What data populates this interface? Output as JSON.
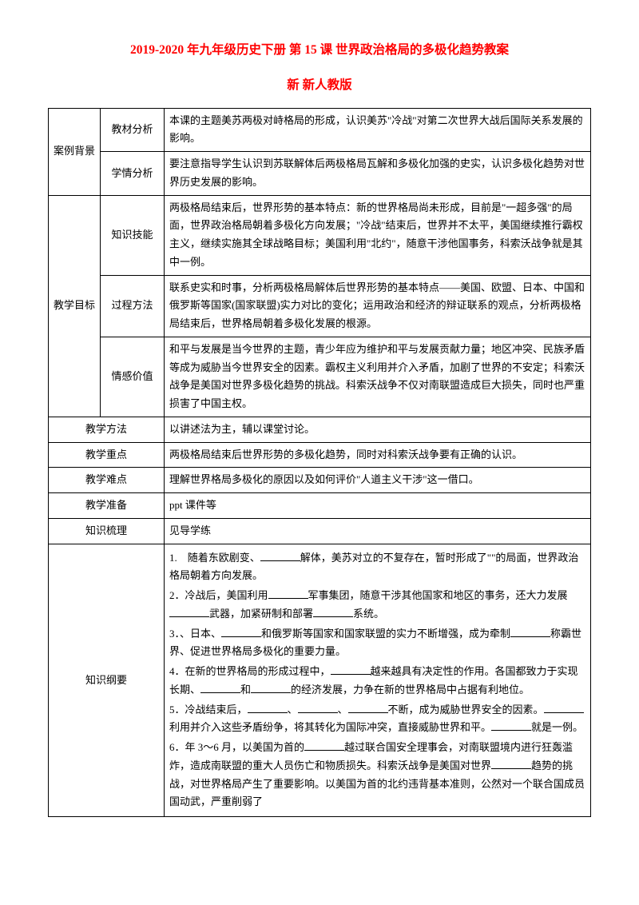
{
  "title1": "2019-2020 年九年级历史下册 第 15 课 世界政治格局的多极化趋势教案",
  "title2": "新 新人教版",
  "rows": {
    "case_bg": "案例背景",
    "textbook_analysis_label": "教材分析",
    "textbook_analysis": "本课的主题美苏两极对峙格局的形成，认识美苏\"冷战\"对第二次世界大战后国际关系发展的影响。",
    "student_analysis_label": "学情分析",
    "student_analysis": "要注意指导学生认识到苏联解体后两极格局瓦解和多极化加强的史实，认识多极化趋势对世界历史发展的影响。",
    "teach_goal": "教学目标",
    "knowledge_skill_label": "知识技能",
    "knowledge_skill": "两极格局结束后，世界形势的基本特点：新的世界格局尚未形成，目前是\"一超多强\"的局面，世界政治格局朝着多极化方向发展；\"冷战\"结束后，世界并不太平，美国继续推行霸权主义，继续实施其全球战略目标；美国利用\"北约\"，随意干涉他国事务，科索沃战争就是其中一例。",
    "process_method_label": "过程方法",
    "process_method": "联系史实和时事，分析两极格局解体后世界形势的基本特点——美国、欧盟、日本、中国和俄罗斯等国家(国家联盟)实力对比的变化；运用政治和经济的辩证联系的观点，分析两极格局结束后，世界格局朝着多极化发展的根源。",
    "emotion_value_label": "情感价值",
    "emotion_value": "和平与发展是当今世界的主题，青少年应为维护和平与发展贡献力量；地区冲突、民族矛盾等成为威胁当今世界安全的因素。霸权主义利用并介入矛盾，加剧了世界的不安定；科索沃战争是美国对世界多极化趋势的挑战。科索沃战争不仅对南联盟造成巨大损失，同时也严重损害了中国主权。",
    "teach_method_label": "教学方法",
    "teach_method": "以讲述法为主，辅以课堂讨论。",
    "teach_focus_label": "教学重点",
    "teach_focus": "两极格局结束后世界形势的多极化趋势，同时对科索沃战争要有正确的认识。",
    "teach_diff_label": "教学难点",
    "teach_diff": "理解世界格局多极化的原因以及如何评价\"人道主义干涉\"这一借口。",
    "teach_prep_label": "教学准备",
    "teach_prep": "ppt 课件等",
    "knowledge_review_label": "知识梳理",
    "knowledge_review": "见导学练",
    "knowledge_outline_label": "知识纲要",
    "outline": {
      "p1a": "1.　随着东欧剧变、",
      "p1b": "解体，美苏对立的",
      "p1c": "不复存在，暂时形成了",
      "p1d": "\"",
      "p1e": "\"的局面，世界政治格局朝着",
      "p1f": "方向发展。",
      "p2a": "2．冷战后，美国利用",
      "p2b": "军事集团，随意干涉其他国家和地区的事务，还大力发展",
      "p2c": "武器，加紧研制和部署",
      "p2d": "系统。",
      "p3a": "3．",
      "p3b": "、日本、",
      "p3c": "和俄罗斯等国家和国家联盟的实力不断增强，成为牵制",
      "p3d": "称霸世界、促进世界格局多极化的重要力量。",
      "p4a": "4．在新的世界格局的形成过程中，",
      "p4b": "越来越具有决定性的作用。各国都致力于实现长期、",
      "p4c": "和",
      "p4d": "的经济发展，力争在新的世界格局中占据有利地位。",
      "p5a": "5．冷战结束后，",
      "p5b": "、",
      "p5c": "、",
      "p5d": "不断，成为威胁世界安全的因素。",
      "p5e": "利用并介入这些矛盾纷争，将其转化为国际冲突，直接威胁世界和平。",
      "p5f": "就是一例。",
      "p6a": "6．",
      "p6b": "年 3～6 月，以美国为首的",
      "p6c": "越过联合国安全理事会，对南联盟境内进行狂轰滥炸，造成南联盟的重大人员伤亡和物质损失。科索沃战争是美国对世界",
      "p6d": "趋势的挑战，对世界格局产生了重要影响。以美国为首的北约违背",
      "p6e": "基本准则，公然对一个联合国成员国动武，严重削弱了"
    }
  }
}
